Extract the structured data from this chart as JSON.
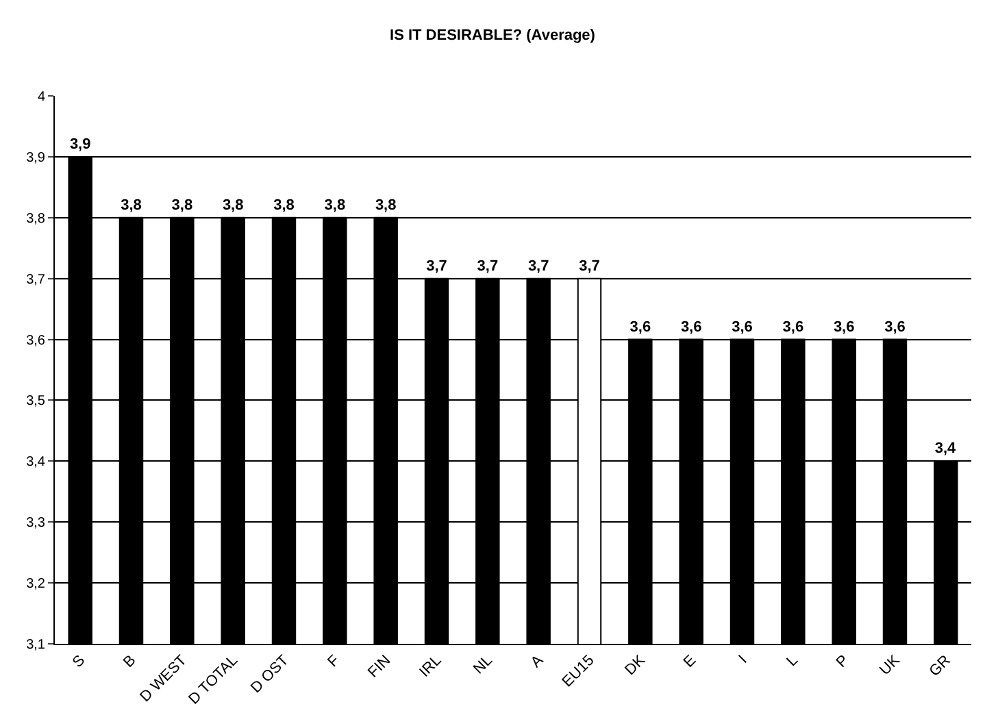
{
  "chart_data": {
    "type": "bar",
    "title": "IS IT DESIRABLE? (Average)",
    "categories": [
      "S",
      "B",
      "D WEST",
      "D TOTAL",
      "D OST",
      "F",
      "FIN",
      "IRL",
      "NL",
      "A",
      "EU15",
      "DK",
      "E",
      "I",
      "L",
      "P",
      "UK",
      "GR"
    ],
    "values": [
      3.9,
      3.8,
      3.8,
      3.8,
      3.8,
      3.8,
      3.8,
      3.7,
      3.7,
      3.7,
      3.7,
      3.6,
      3.6,
      3.6,
      3.6,
      3.6,
      3.6,
      3.4
    ],
    "colors": [
      "#000000",
      "#000000",
      "#000000",
      "#000000",
      "#000000",
      "#000000",
      "#000000",
      "#000000",
      "#000000",
      "#000000",
      "#ffffff",
      "#000000",
      "#000000",
      "#000000",
      "#000000",
      "#000000",
      "#000000",
      "#000000"
    ],
    "value_labels": [
      "3,9",
      "3,8",
      "3,8",
      "3,8",
      "3,8",
      "3,8",
      "3,8",
      "3,7",
      "3,7",
      "3,7",
      "3,7",
      "3,6",
      "3,6",
      "3,6",
      "3,6",
      "3,6",
      "3,6",
      "3,4"
    ],
    "ylim": [
      3.1,
      4
    ],
    "yticks": [
      {
        "value": 3.1,
        "label": "3,1"
      },
      {
        "value": 3.2,
        "label": "3,2"
      },
      {
        "value": 3.3,
        "label": "3,3"
      },
      {
        "value": 3.4,
        "label": "3,4"
      },
      {
        "value": 3.5,
        "label": "3,5"
      },
      {
        "value": 3.6,
        "label": "3,6"
      },
      {
        "value": 3.7,
        "label": "3,7"
      },
      {
        "value": 3.8,
        "label": "3,8"
      },
      {
        "value": 3.9,
        "label": "3,9"
      },
      {
        "value": 4,
        "label": "4"
      }
    ],
    "grid": "y"
  }
}
